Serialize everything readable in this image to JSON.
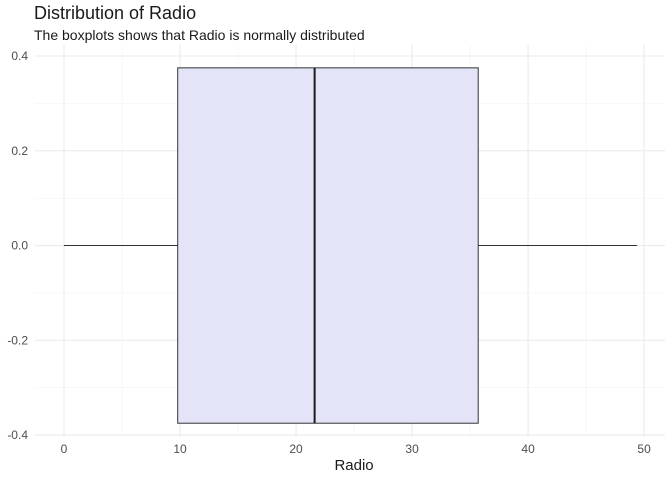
{
  "chart_data": {
    "type": "boxplot",
    "title": "Distribution of Radio",
    "subtitle": "The boxplots shows that Radio is normally distributed",
    "xlabel": "Radio",
    "ylabel": "",
    "xlim": [
      -2.5,
      51.8
    ],
    "ylim": [
      -0.4,
      0.4
    ],
    "x_ticks": [
      0,
      10,
      20,
      30,
      40,
      50
    ],
    "x_tick_labels": [
      "0",
      "10",
      "20",
      "30",
      "40",
      "50"
    ],
    "y_ticks": [
      0.4,
      0.2,
      0.0,
      -0.2,
      -0.4
    ],
    "y_tick_labels": [
      "0.4",
      "0.2",
      "0.0",
      "-0.2",
      "-0.4"
    ],
    "grid": true,
    "legend": "none",
    "box": {
      "min": 0.0,
      "q1": 9.8,
      "median": 21.6,
      "q3": 35.7,
      "max": 49.4,
      "y_center": 0.0,
      "half_height": 0.375,
      "fill": "#e3e4f8",
      "stroke": "#333333"
    }
  }
}
